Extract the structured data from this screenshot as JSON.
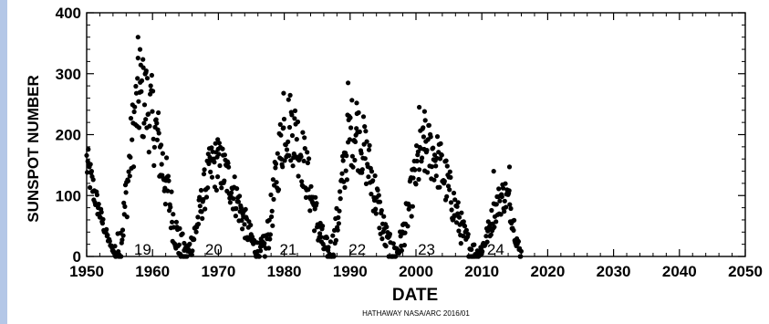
{
  "chart_data": {
    "type": "scatter",
    "xlabel": "DATE",
    "ylabel": "SUNSPOT NUMBER",
    "xlim": [
      1950,
      2050
    ],
    "ylim": [
      0,
      400
    ],
    "x_ticks": [
      1950,
      1960,
      1970,
      1980,
      1990,
      2000,
      2010,
      2020,
      2030,
      2040,
      2050
    ],
    "y_ticks": [
      0,
      100,
      200,
      300,
      400
    ],
    "credit": "HATHAWAY  NASA/ARC 2016/01",
    "color": "#000000",
    "cycle_labels": [
      {
        "label": "19",
        "x": 1958.5,
        "y": 12
      },
      {
        "label": "20",
        "x": 1969.3,
        "y": 12
      },
      {
        "label": "21",
        "x": 1980.6,
        "y": 12
      },
      {
        "label": "22",
        "x": 1991.1,
        "y": 12
      },
      {
        "label": "23",
        "x": 2001.6,
        "y": 12
      },
      {
        "label": "24",
        "x": 2012.1,
        "y": 12
      }
    ],
    "cycles": [
      {
        "start": 1950.0,
        "min": 1954.3,
        "minVal": 5,
        "peak": 1958.2,
        "peakVal": 260,
        "end": 1964.8
      },
      {
        "start": 1964.8,
        "min": 1964.8,
        "minVal": 5,
        "peak": 1969.5,
        "peakVal": 150,
        "end": 1976.4
      },
      {
        "start": 1976.4,
        "min": 1976.4,
        "minVal": 5,
        "peak": 1980.5,
        "peakVal": 215,
        "end": 1986.7
      },
      {
        "start": 1986.7,
        "min": 1986.7,
        "minVal": 5,
        "peak": 1990.4,
        "peakVal": 205,
        "end": 1996.5
      },
      {
        "start": 1996.5,
        "min": 1996.5,
        "minVal": 5,
        "peak": 2001.5,
        "peakVal": 175,
        "end": 2008.9
      },
      {
        "start": 2008.9,
        "min": 2008.9,
        "minVal": 3,
        "peak": 2013.5,
        "peakVal": 100,
        "end": 2016.0
      }
    ],
    "initial_decline": {
      "x0": 1950.0,
      "y0": 150,
      "x1": 1954.3,
      "y1": 5
    },
    "outliers": [
      {
        "x": 1957.8,
        "y": 360
      },
      {
        "x": 1958.1,
        "y": 340
      },
      {
        "x": 1958.6,
        "y": 310
      },
      {
        "x": 1959.0,
        "y": 302
      },
      {
        "x": 1969.9,
        "y": 192
      },
      {
        "x": 1979.9,
        "y": 268
      },
      {
        "x": 1989.7,
        "y": 285
      },
      {
        "x": 1991.0,
        "y": 252
      },
      {
        "x": 2000.5,
        "y": 245
      },
      {
        "x": 2001.3,
        "y": 238
      },
      {
        "x": 2011.8,
        "y": 140
      },
      {
        "x": 2014.2,
        "y": 147
      }
    ]
  }
}
